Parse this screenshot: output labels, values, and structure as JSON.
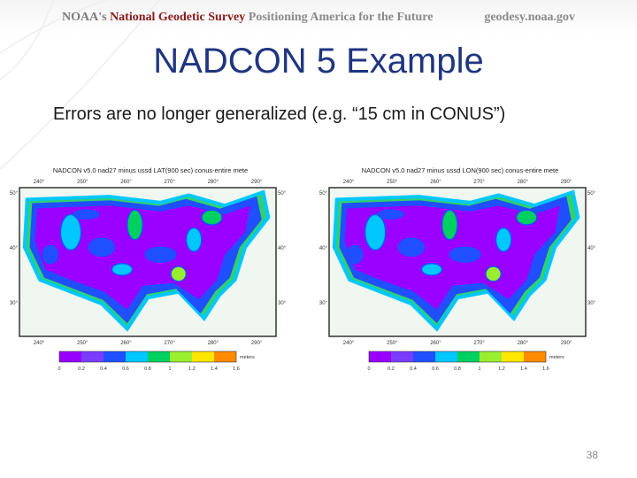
{
  "header": {
    "left_prefix": "NOAA's",
    "left_bold": "National Geodetic Survey",
    "left_suffix": "Positioning America for the Future",
    "right": "geodesy.noaa.gov"
  },
  "slide": {
    "title": "NADCON 5 Example",
    "subtitle": "Errors are no longer generalized (e.g. “15 cm in CONUS”)",
    "page_number": "38"
  },
  "maps": [
    {
      "title": "NADCON v5.0 nad27 minus ussd LAT(900 sec) conus-entire mete",
      "x_labels": [
        "240°",
        "250°",
        "260°",
        "270°",
        "280°",
        "290°"
      ],
      "y_labels": [
        "50°",
        "40°",
        "30°"
      ],
      "colorbar_labels": [
        "0",
        "0.2",
        "0.4",
        "0.6",
        "0.8",
        "1",
        "1.2",
        "1.4",
        "1.6"
      ],
      "colorbar_unit": "meters"
    },
    {
      "title": "NADCON v5.0 nad27 minus ussd LON(900 sec) conus-entire mete",
      "x_labels": [
        "240°",
        "250°",
        "260°",
        "270°",
        "280°",
        "290°"
      ],
      "y_labels": [
        "50°",
        "40°",
        "30°"
      ],
      "colorbar_labels": [
        "0",
        "0.2",
        "0.4",
        "0.6",
        "0.8",
        "1",
        "1.2",
        "1.4",
        "1.6"
      ],
      "colorbar_unit": "meters"
    }
  ]
}
